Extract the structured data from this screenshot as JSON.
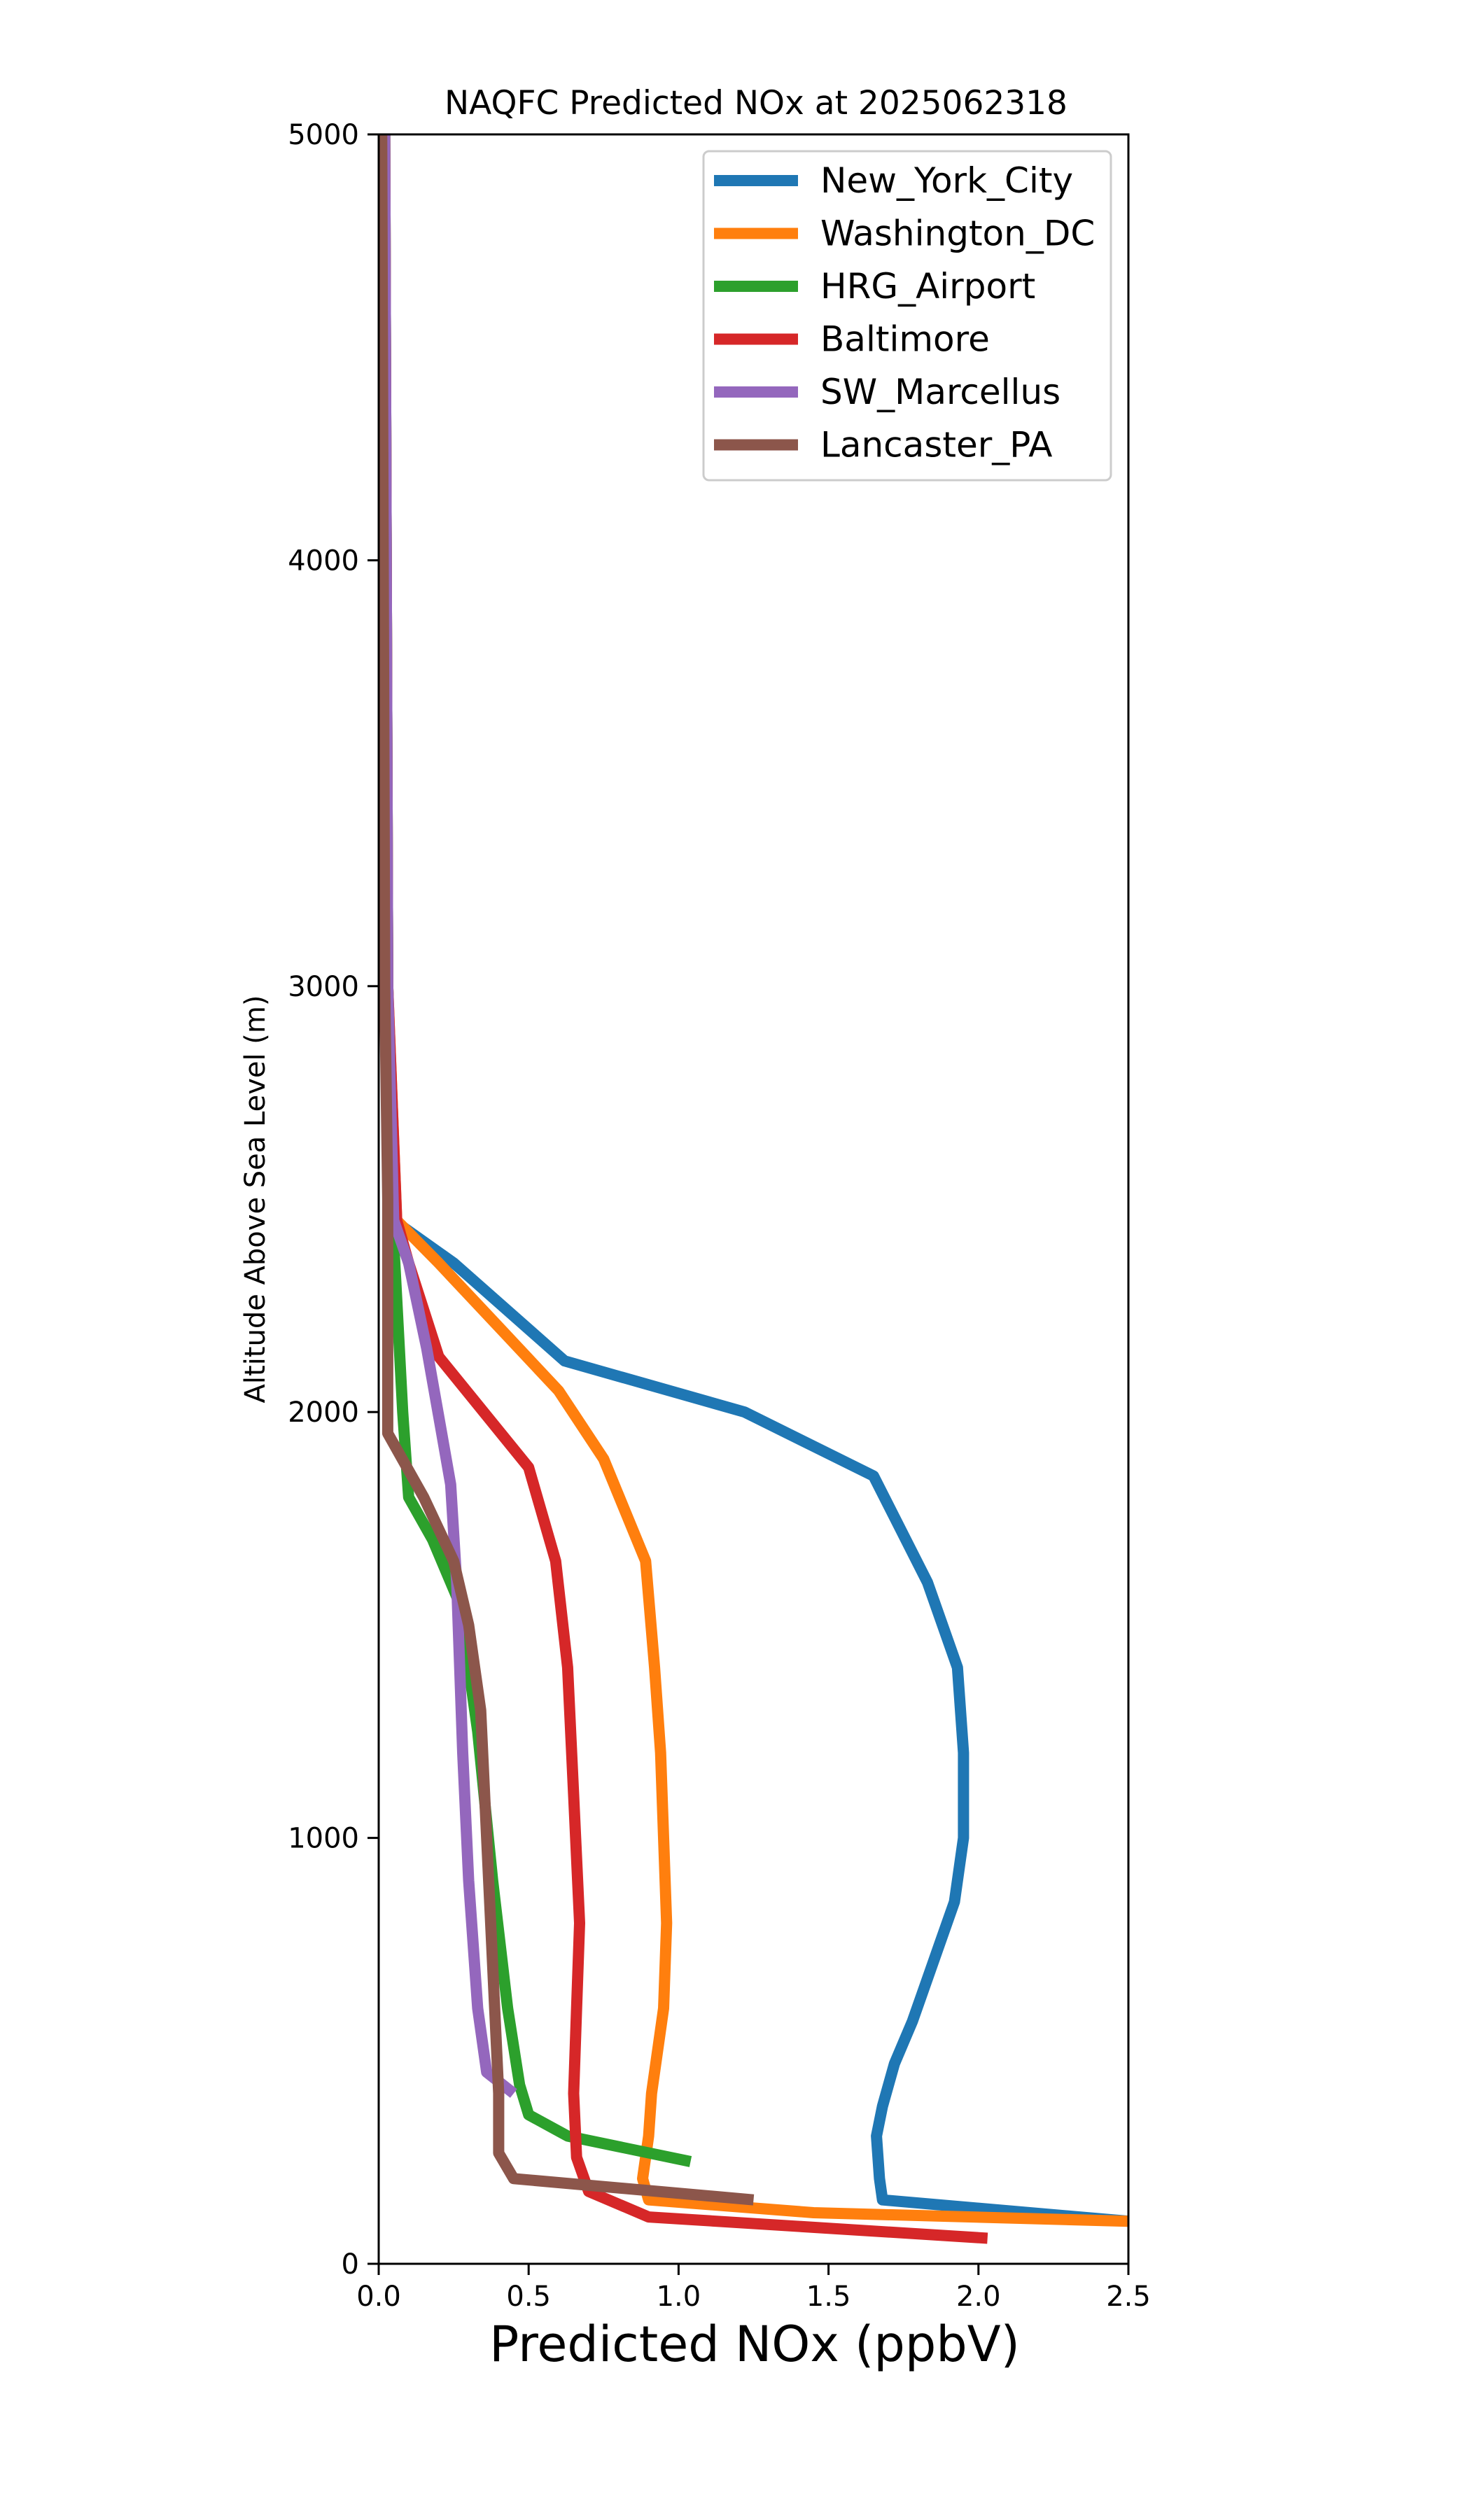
{
  "chart_data": {
    "type": "line",
    "title": "NAQFC Predicted NOx at 2025062318",
    "xlabel": "Predicted NOx (ppbV)",
    "ylabel": "Altitude Above Sea Level (m)",
    "xlim": [
      0.0,
      2.5
    ],
    "ylim": [
      0,
      5000
    ],
    "xticks": [
      "0.0",
      "0.5",
      "1.0",
      "1.5",
      "2.0",
      "2.5"
    ],
    "yticks": [
      "0",
      "1000",
      "2000",
      "3000",
      "4000",
      "5000"
    ],
    "grid": false,
    "legend_position": "top-right",
    "series": [
      {
        "name": "New_York_City",
        "color": "#1f77b4",
        "points": [
          [
            2.5,
            100
          ],
          [
            1.68,
            150
          ],
          [
            1.67,
            200
          ],
          [
            1.66,
            300
          ],
          [
            1.68,
            370
          ],
          [
            1.72,
            470
          ],
          [
            1.78,
            570
          ],
          [
            1.83,
            670
          ],
          [
            1.87,
            750
          ],
          [
            1.92,
            850
          ],
          [
            1.95,
            1000
          ],
          [
            1.95,
            1200
          ],
          [
            1.93,
            1400
          ],
          [
            1.83,
            1600
          ],
          [
            1.65,
            1850
          ],
          [
            1.22,
            2000
          ],
          [
            0.62,
            2120
          ],
          [
            0.25,
            2350
          ],
          [
            0.05,
            2450
          ],
          [
            0.03,
            3000
          ],
          [
            0.02,
            5000
          ]
        ]
      },
      {
        "name": "Washington_DC",
        "color": "#ff7f0e",
        "points": [
          [
            2.5,
            100
          ],
          [
            1.45,
            120
          ],
          [
            0.9,
            150
          ],
          [
            0.88,
            200
          ],
          [
            0.9,
            300
          ],
          [
            0.91,
            400
          ],
          [
            0.93,
            500
          ],
          [
            0.95,
            600
          ],
          [
            0.96,
            800
          ],
          [
            0.95,
            1000
          ],
          [
            0.94,
            1200
          ],
          [
            0.92,
            1400
          ],
          [
            0.89,
            1650
          ],
          [
            0.75,
            1890
          ],
          [
            0.6,
            2050
          ],
          [
            0.4,
            2200
          ],
          [
            0.2,
            2350
          ],
          [
            0.06,
            2450
          ],
          [
            0.03,
            3000
          ],
          [
            0.02,
            5000
          ]
        ]
      },
      {
        "name": "HRG_Airport",
        "color": "#2ca02c",
        "points": [
          [
            1.04,
            240
          ],
          [
            0.63,
            300
          ],
          [
            0.5,
            350
          ],
          [
            0.47,
            420
          ],
          [
            0.43,
            600
          ],
          [
            0.38,
            900
          ],
          [
            0.33,
            1250
          ],
          [
            0.27,
            1550
          ],
          [
            0.18,
            1700
          ],
          [
            0.1,
            1800
          ],
          [
            0.08,
            2000
          ],
          [
            0.05,
            2400
          ],
          [
            0.03,
            3000
          ],
          [
            0.02,
            5000
          ]
        ]
      },
      {
        "name": "Baltimore",
        "color": "#d62728",
        "points": [
          [
            2.03,
            60
          ],
          [
            0.9,
            110
          ],
          [
            0.7,
            170
          ],
          [
            0.66,
            250
          ],
          [
            0.65,
            400
          ],
          [
            0.66,
            600
          ],
          [
            0.67,
            800
          ],
          [
            0.65,
            1100
          ],
          [
            0.63,
            1400
          ],
          [
            0.59,
            1650
          ],
          [
            0.5,
            1870
          ],
          [
            0.2,
            2130
          ],
          [
            0.1,
            2350
          ],
          [
            0.06,
            2450
          ],
          [
            0.03,
            3000
          ],
          [
            0.02,
            5000
          ]
        ]
      },
      {
        "name": "SW_Marcellus",
        "color": "#9467bd",
        "points": [
          [
            0.45,
            400
          ],
          [
            0.36,
            450
          ],
          [
            0.33,
            600
          ],
          [
            0.3,
            900
          ],
          [
            0.28,
            1200
          ],
          [
            0.26,
            1600
          ],
          [
            0.24,
            1830
          ],
          [
            0.21,
            1950
          ],
          [
            0.16,
            2150
          ],
          [
            0.1,
            2350
          ],
          [
            0.05,
            2450
          ],
          [
            0.03,
            3000
          ],
          [
            0.02,
            5000
          ]
        ]
      },
      {
        "name": "Lancaster_PA",
        "color": "#8c564b",
        "points": [
          [
            1.25,
            150
          ],
          [
            0.45,
            200
          ],
          [
            0.4,
            260
          ],
          [
            0.4,
            400
          ],
          [
            0.38,
            700
          ],
          [
            0.36,
            1000
          ],
          [
            0.34,
            1300
          ],
          [
            0.3,
            1500
          ],
          [
            0.25,
            1650
          ],
          [
            0.15,
            1800
          ],
          [
            0.03,
            1950
          ],
          [
            0.03,
            2500
          ],
          [
            0.02,
            3000
          ],
          [
            0.01,
            5000
          ]
        ]
      }
    ]
  }
}
